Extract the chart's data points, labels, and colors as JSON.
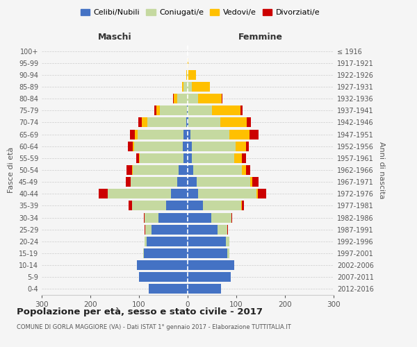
{
  "age_groups": [
    "0-4",
    "5-9",
    "10-14",
    "15-19",
    "20-24",
    "25-29",
    "30-34",
    "35-39",
    "40-44",
    "45-49",
    "50-54",
    "55-59",
    "60-64",
    "65-69",
    "70-74",
    "75-79",
    "80-84",
    "85-89",
    "90-94",
    "95-99",
    "100+"
  ],
  "birth_years": [
    "2012-2016",
    "2007-2011",
    "2002-2006",
    "1997-2001",
    "1992-1996",
    "1987-1991",
    "1982-1986",
    "1977-1981",
    "1972-1976",
    "1967-1971",
    "1962-1966",
    "1957-1961",
    "1952-1956",
    "1947-1951",
    "1942-1946",
    "1937-1941",
    "1932-1936",
    "1927-1931",
    "1922-1926",
    "1917-1921",
    "≤ 1916"
  ],
  "male_celibi": [
    80,
    100,
    105,
    90,
    85,
    75,
    60,
    45,
    35,
    22,
    18,
    8,
    10,
    8,
    3,
    2,
    0,
    0,
    0,
    0,
    0
  ],
  "male_coniugati": [
    0,
    0,
    0,
    2,
    4,
    12,
    28,
    70,
    130,
    95,
    95,
    90,
    100,
    95,
    80,
    55,
    22,
    8,
    2,
    0,
    0
  ],
  "male_vedovi": [
    0,
    0,
    0,
    0,
    0,
    0,
    0,
    0,
    0,
    0,
    1,
    2,
    3,
    5,
    12,
    8,
    6,
    3,
    1,
    0,
    0
  ],
  "male_divorziati": [
    0,
    0,
    0,
    0,
    0,
    1,
    2,
    6,
    18,
    10,
    12,
    6,
    10,
    10,
    6,
    3,
    2,
    0,
    0,
    0,
    0
  ],
  "female_nubili": [
    68,
    88,
    95,
    82,
    78,
    62,
    48,
    32,
    22,
    18,
    12,
    8,
    8,
    5,
    2,
    0,
    0,
    0,
    0,
    0,
    0
  ],
  "female_coniugate": [
    0,
    0,
    0,
    3,
    8,
    20,
    42,
    78,
    120,
    110,
    100,
    88,
    90,
    80,
    65,
    50,
    22,
    8,
    2,
    0,
    0
  ],
  "female_vedove": [
    0,
    0,
    0,
    0,
    0,
    0,
    0,
    1,
    2,
    5,
    8,
    16,
    22,
    42,
    55,
    58,
    48,
    38,
    15,
    2,
    0
  ],
  "female_divorziate": [
    0,
    0,
    0,
    0,
    0,
    1,
    2,
    4,
    18,
    12,
    8,
    8,
    5,
    18,
    8,
    5,
    2,
    0,
    0,
    0,
    0
  ],
  "colors": {
    "celibi": "#4472c4",
    "coniugati": "#c5d9a0",
    "vedovi": "#ffc000",
    "divorziati": "#cc0000"
  },
  "legend_labels": [
    "Celibi/Nubili",
    "Coniugati/e",
    "Vedovi/e",
    "Divorziati/e"
  ],
  "title": "Popolazione per età, sesso e stato civile - 2017",
  "subtitle": "COMUNE DI GORLA MAGGIORE (VA) - Dati ISTAT 1° gennaio 2017 - Elaborazione TUTTITALIA.IT",
  "ylabel_left": "Fasce di età",
  "ylabel_right": "Anni di nascita",
  "xlabel_left": "Maschi",
  "xlabel_right": "Femmine",
  "xlim": 300,
  "bg_color": "#f5f5f5",
  "grid_color": "#cccccc"
}
